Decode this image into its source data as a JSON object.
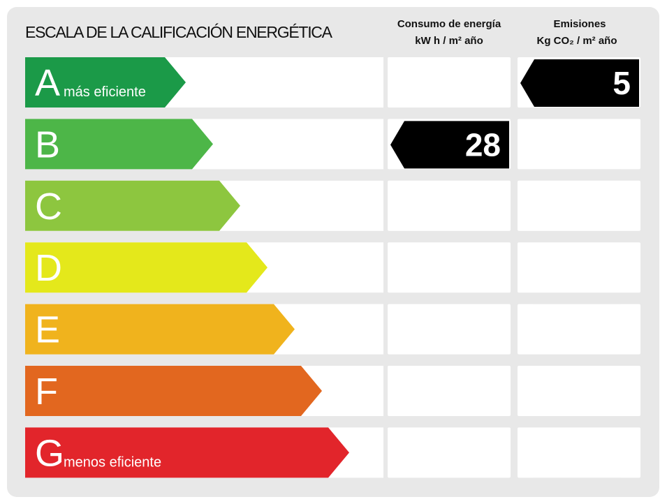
{
  "title": "ESCALA DE LA CALIFICACIÓN ENERGÉTICA",
  "columns": [
    {
      "title": "Consumo de energía",
      "unit": "kW h / m² año"
    },
    {
      "title": "Emisiones",
      "unit": "Kg CO₂ / m² año"
    }
  ],
  "grades": [
    {
      "letter": "A",
      "note": "más eficiente",
      "color": "#1b9a48"
    },
    {
      "letter": "B",
      "color": "#4db648"
    },
    {
      "letter": "C",
      "color": "#8dc63f"
    },
    {
      "letter": "D",
      "color": "#e4e81b"
    },
    {
      "letter": "E",
      "color": "#f0b31d"
    },
    {
      "letter": "F",
      "color": "#e2671f"
    },
    {
      "letter": "G",
      "note": "menos eficiente",
      "color": "#e2252b"
    }
  ],
  "ratings": [
    {
      "grade": "B",
      "value": 28
    },
    {
      "grade": "A",
      "value": 5
    }
  ]
}
